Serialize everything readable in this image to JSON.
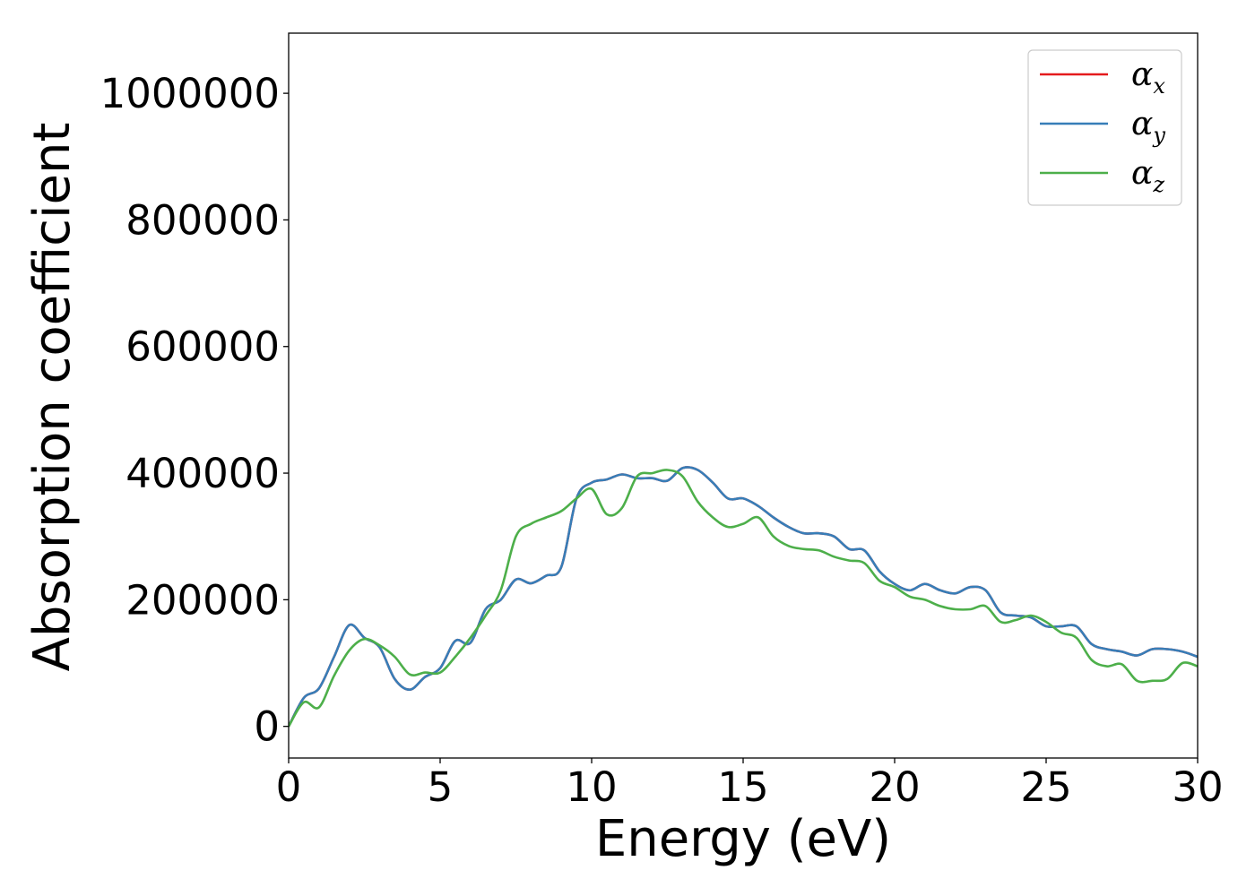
{
  "chart_data": {
    "type": "line",
    "xlabel": "Energy (eV)",
    "ylabel": "Absorption coefficient",
    "xlim": [
      0,
      30
    ],
    "ylim": [
      -50000,
      1095000
    ],
    "xticks": [
      "0",
      "5",
      "10",
      "15",
      "20",
      "25",
      "30"
    ],
    "yticks": [
      "0",
      "200000",
      "400000",
      "600000",
      "800000",
      "1000000"
    ],
    "grid": false,
    "legend_position": "top-right",
    "x": [
      0,
      0.5,
      1,
      1.5,
      2,
      2.5,
      3,
      3.5,
      4,
      4.5,
      5,
      5.5,
      6,
      6.5,
      7,
      7.5,
      8,
      8.5,
      9,
      9.5,
      10,
      10.5,
      11,
      11.5,
      12,
      12.5,
      13,
      13.5,
      14,
      14.5,
      15,
      15.5,
      16,
      16.5,
      17,
      17.5,
      18,
      18.5,
      19,
      19.5,
      20,
      20.5,
      21,
      21.5,
      22,
      22.5,
      23,
      23.5,
      24,
      24.5,
      25,
      25.5,
      26,
      26.5,
      27,
      27.5,
      28,
      28.5,
      29,
      29.5,
      30
    ],
    "series": [
      {
        "name": "αx",
        "label_symbol": "α",
        "label_sub": "x",
        "color": "#e41a1c",
        "values": [
          0,
          45000,
          60000,
          110000,
          160000,
          140000,
          125000,
          75000,
          58000,
          78000,
          92000,
          135000,
          132000,
          185000,
          200000,
          232000,
          226000,
          238000,
          252000,
          360000,
          385000,
          390000,
          398000,
          392000,
          392000,
          388000,
          408000,
          405000,
          385000,
          360000,
          360000,
          348000,
          330000,
          315000,
          305000,
          305000,
          300000,
          280000,
          278000,
          245000,
          225000,
          215000,
          225000,
          215000,
          210000,
          220000,
          215000,
          180000,
          175000,
          172000,
          158000,
          158000,
          158000,
          130000,
          122000,
          118000,
          112000,
          122000,
          122000,
          118000,
          110000
        ]
      },
      {
        "name": "αy",
        "label_symbol": "α",
        "label_sub": "y",
        "color": "#377eb8",
        "values": [
          0,
          45000,
          60000,
          110000,
          160000,
          140000,
          125000,
          75000,
          58000,
          78000,
          92000,
          135000,
          132000,
          185000,
          200000,
          232000,
          226000,
          238000,
          252000,
          360000,
          385000,
          390000,
          398000,
          392000,
          392000,
          388000,
          408000,
          405000,
          385000,
          360000,
          360000,
          348000,
          330000,
          315000,
          305000,
          305000,
          300000,
          280000,
          278000,
          245000,
          225000,
          215000,
          225000,
          215000,
          210000,
          220000,
          215000,
          180000,
          175000,
          172000,
          158000,
          158000,
          158000,
          130000,
          122000,
          118000,
          112000,
          122000,
          122000,
          118000,
          110000
        ]
      },
      {
        "name": "αz",
        "label_symbol": "α",
        "label_sub": "z",
        "color": "#4daf4a",
        "values": [
          0,
          38000,
          30000,
          80000,
          120000,
          138000,
          128000,
          110000,
          82000,
          85000,
          85000,
          110000,
          140000,
          175000,
          215000,
          300000,
          320000,
          330000,
          340000,
          360000,
          375000,
          335000,
          345000,
          395000,
          400000,
          405000,
          395000,
          355000,
          330000,
          315000,
          320000,
          330000,
          300000,
          285000,
          280000,
          278000,
          268000,
          262000,
          258000,
          230000,
          220000,
          205000,
          200000,
          190000,
          185000,
          185000,
          190000,
          165000,
          168000,
          175000,
          165000,
          148000,
          140000,
          105000,
          95000,
          98000,
          72000,
          72000,
          75000,
          100000,
          95000
        ]
      }
    ]
  }
}
